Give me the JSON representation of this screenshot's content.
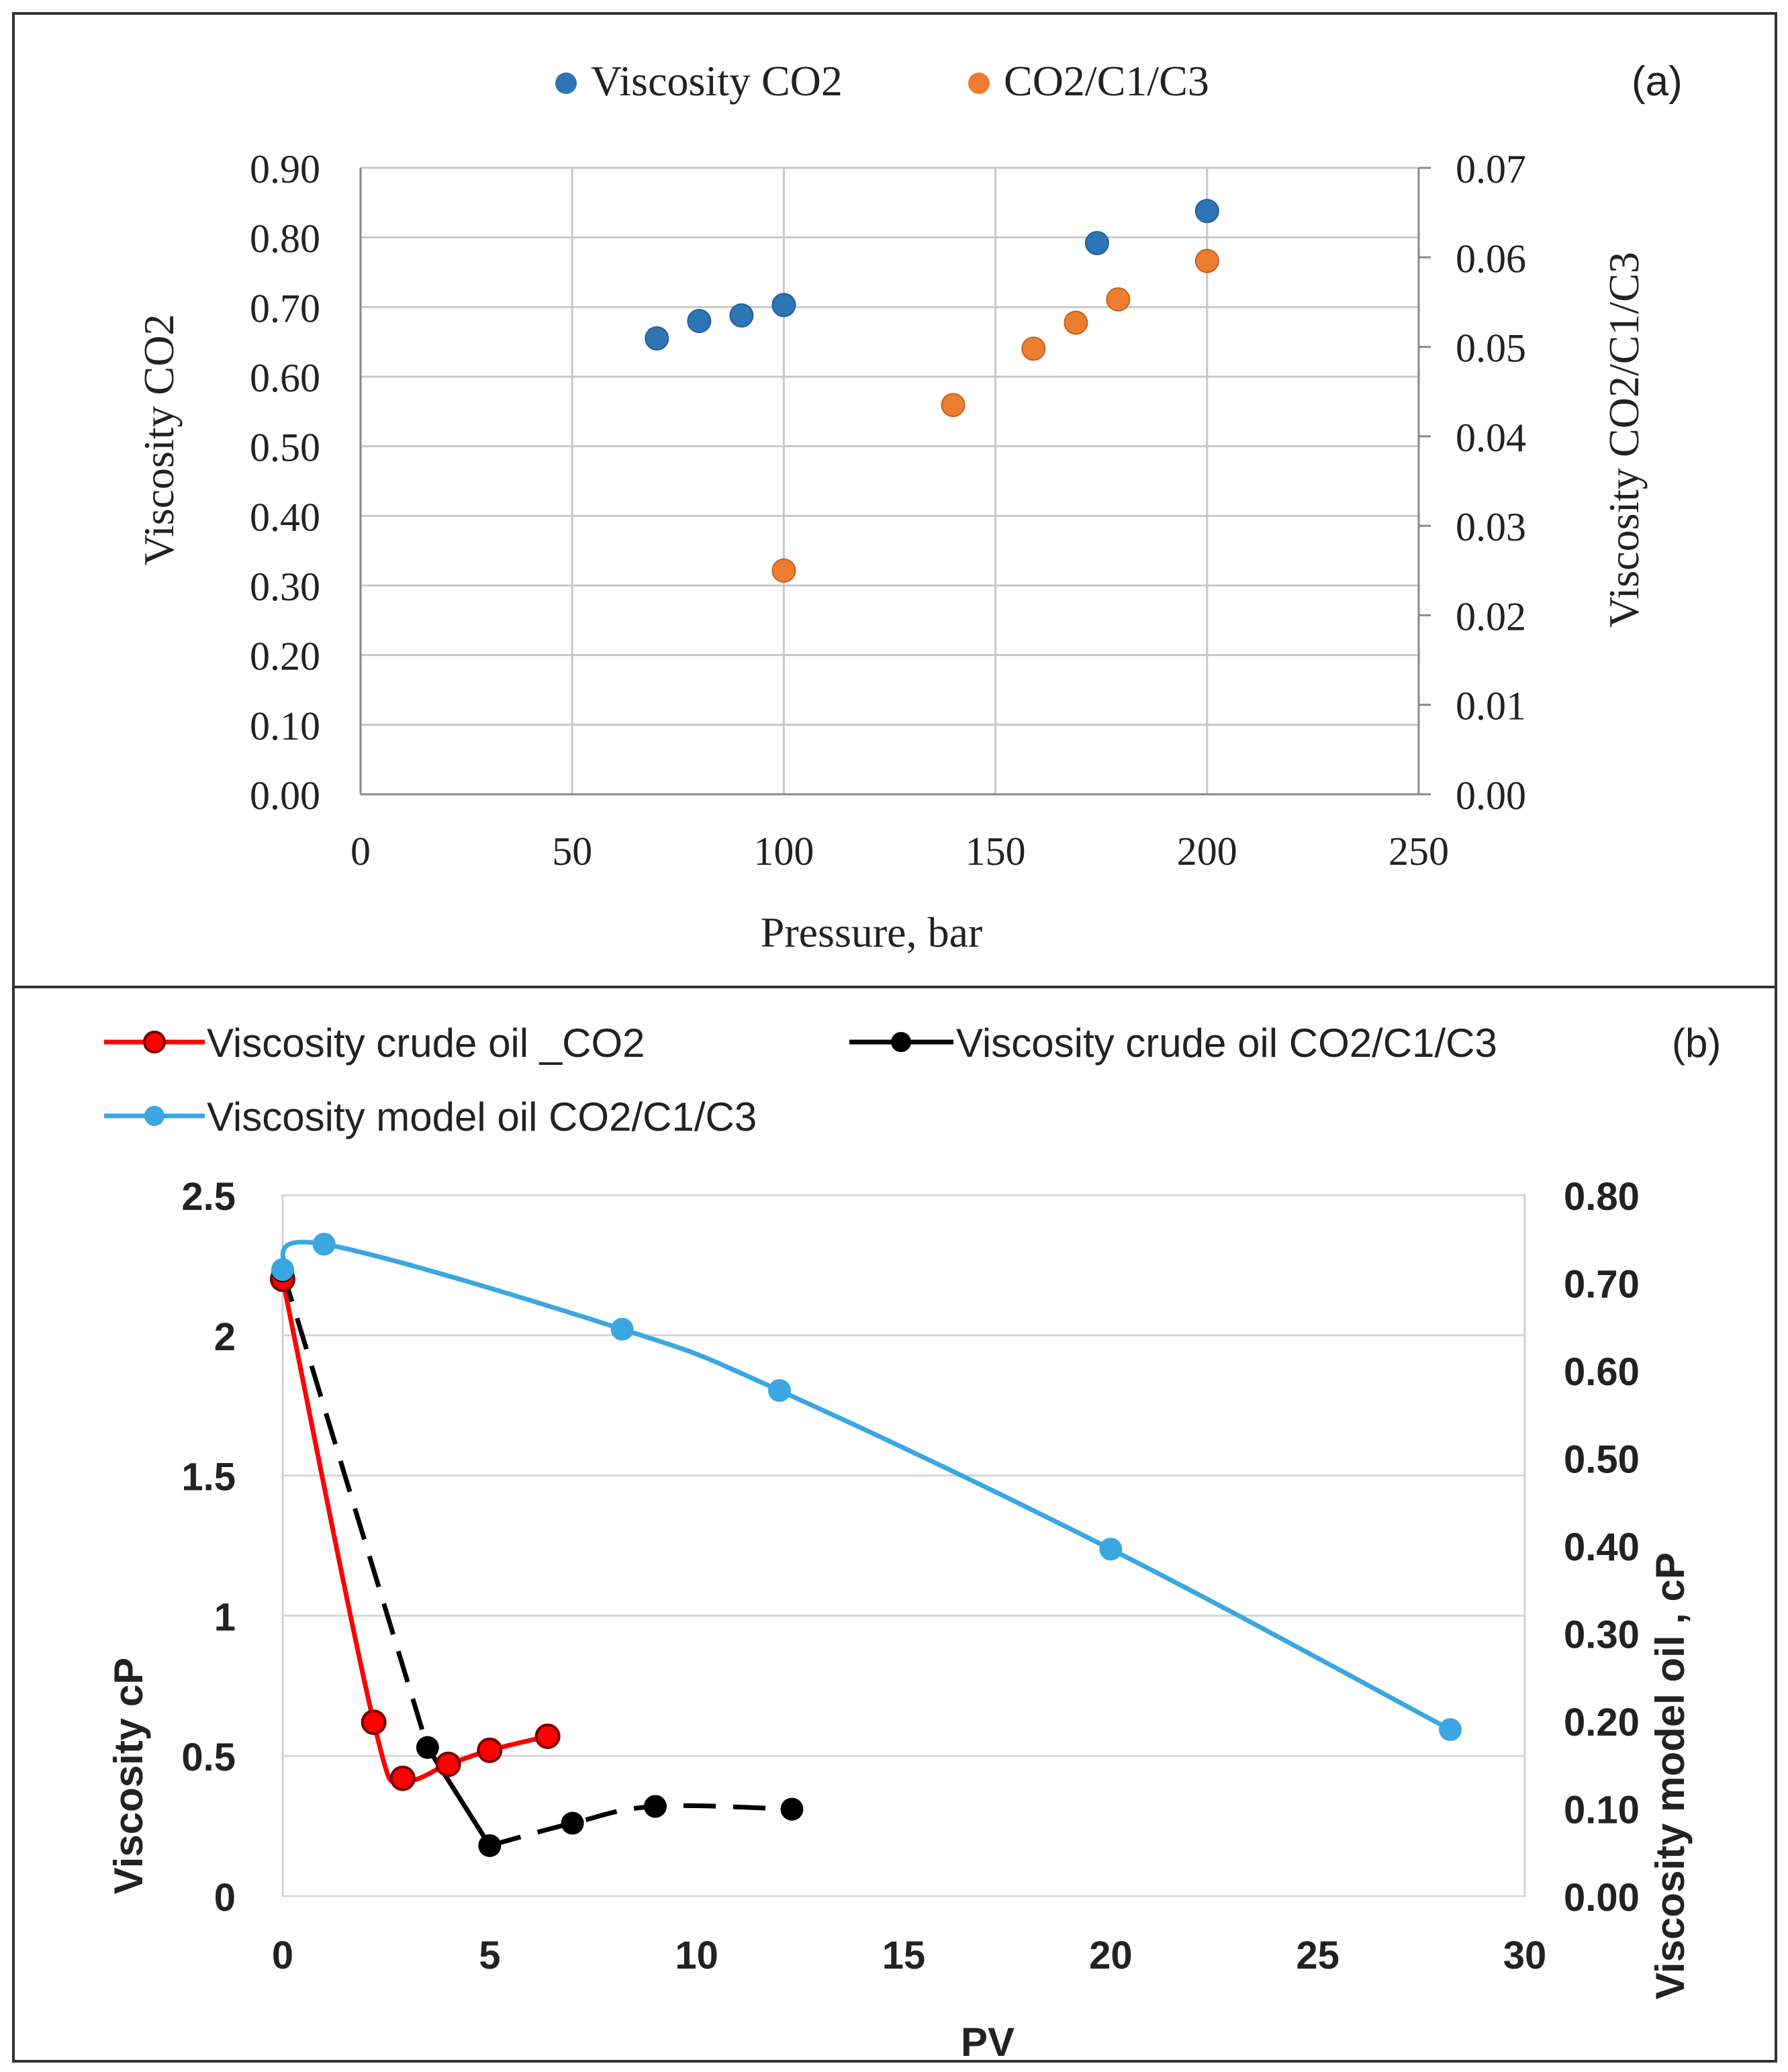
{
  "chart_data": [
    {
      "type": "scatter",
      "panel_label": "(a)",
      "title": "",
      "xlabel": "Pressure, bar",
      "ylabel": "Viscosity CO2",
      "y2label": "Viscosity CO2/C1/C3",
      "xlim": [
        0,
        250
      ],
      "ylim": [
        0,
        0.9
      ],
      "y2lim": [
        0,
        0.07
      ],
      "x_ticks": [
        "0",
        "50",
        "100",
        "150",
        "200",
        "250"
      ],
      "y_ticks": [
        "0.00",
        "0.10",
        "0.20",
        "0.30",
        "0.40",
        "0.50",
        "0.60",
        "0.70",
        "0.80",
        "0.90"
      ],
      "y2_ticks": [
        "0.00",
        "0.01",
        "0.02",
        "0.03",
        "0.04",
        "0.05",
        "0.06",
        "0.07"
      ],
      "grid": true,
      "legend_position": "top-center",
      "series": [
        {
          "name": "Viscosity CO2",
          "axis": "left",
          "color": "#2e75b6",
          "points": [
            [
              70,
              0.655
            ],
            [
              80,
              0.68
            ],
            [
              90,
              0.688
            ],
            [
              100,
              0.703
            ],
            [
              174,
              0.792
            ],
            [
              200,
              0.838
            ]
          ]
        },
        {
          "name": "CO2/C1/C3",
          "axis": "right",
          "color": "#ed7d31",
          "points": [
            [
              100,
              0.025
            ],
            [
              140,
              0.0435
            ],
            [
              159,
              0.0498
            ],
            [
              169,
              0.0527
            ],
            [
              179,
              0.0553
            ],
            [
              200,
              0.0596
            ]
          ]
        }
      ]
    },
    {
      "type": "line",
      "panel_label": "(b)",
      "title": "",
      "xlabel": "PV",
      "ylabel": "Viscosity cP",
      "y2label": "Viscosity model oil , cP",
      "xlim": [
        0,
        30
      ],
      "ylim": [
        0,
        2.5
      ],
      "y2lim": [
        0,
        0.8
      ],
      "x_ticks": [
        "0",
        "5",
        "10",
        "15",
        "20",
        "25",
        "30"
      ],
      "y_ticks": [
        "0",
        "0.5",
        "1",
        "1.5",
        "2",
        "2.5"
      ],
      "y2_ticks": [
        "0.00",
        "0.10",
        "0.20",
        "0.30",
        "0.40",
        "0.50",
        "0.60",
        "0.70",
        "0.80"
      ],
      "grid": true,
      "legend_position": "top",
      "series": [
        {
          "name": "Viscosity crude oil _CO2",
          "axis": "left",
          "color": "#ff0000",
          "dash": "solid",
          "points": [
            [
              0,
              2.2
            ],
            [
              2.2,
              0.62
            ],
            [
              2.9,
              0.42
            ],
            [
              4.0,
              0.47
            ],
            [
              5.0,
              0.52
            ],
            [
              6.4,
              0.57
            ]
          ]
        },
        {
          "name": "Viscosity crude oil CO2/C1/C3",
          "axis": "left",
          "color": "#000000",
          "dash": "mixed",
          "points": [
            [
              0,
              2.23
            ],
            [
              3.5,
              0.53
            ],
            [
              5.0,
              0.18
            ],
            [
              7.0,
              0.26
            ],
            [
              9.0,
              0.32
            ],
            [
              12.3,
              0.31
            ]
          ]
        },
        {
          "name": "Viscosity model oil CO2/C1/C3",
          "axis": "right",
          "color": "#3ba7e0",
          "dash": "solid",
          "points": [
            [
              0,
              0.715
            ],
            [
              1.0,
              0.744
            ],
            [
              8.2,
              0.647
            ],
            [
              12.0,
              0.577
            ],
            [
              20.0,
              0.396
            ],
            [
              28.2,
              0.19
            ]
          ]
        }
      ]
    }
  ]
}
